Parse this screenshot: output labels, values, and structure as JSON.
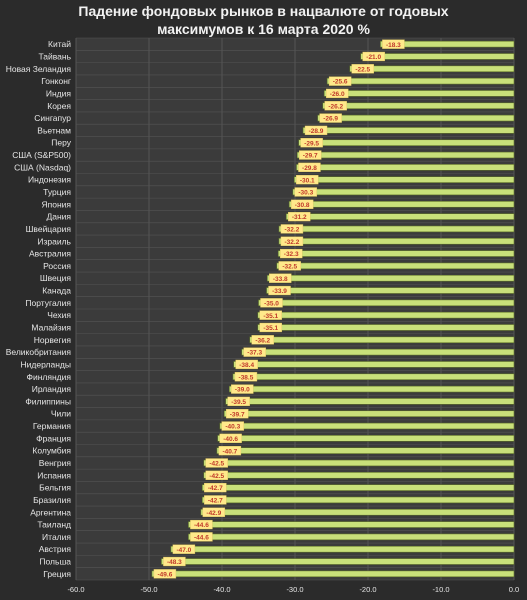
{
  "title_line1": "Падение фондовых рынков в нацвалюте от годовых",
  "title_line2": "максимумов к 16 марта 2020 %",
  "chart_data": {
    "type": "bar",
    "orientation": "horizontal",
    "title": "Падение фондовых рынков в нацвалюте от годовых максимумов к 16 марта 2020 %",
    "categories": [
      "Китай",
      "Тайвань",
      "Новая Зеландия",
      "Гонконг",
      "Индия",
      "Корея",
      "Сингапур",
      "Вьетнам",
      "Перу",
      "США (S&P500)",
      "США (Nasdaq)",
      "Индонезия",
      "Турция",
      "Япония",
      "Дания",
      "Швейцария",
      "Израиль",
      "Австралия",
      "Россия",
      "Швеция",
      "Канада",
      "Португалия",
      "Чехия",
      "Малайзия",
      "Норвегия",
      "Великобритания",
      "Нидерланды",
      "Финляндия",
      "Ирландия",
      "Филиппины",
      "Чили",
      "Германия",
      "Франция",
      "Колумбия",
      "Венгрия",
      "Испания",
      "Бельгия",
      "Бразилия",
      "Аргентина",
      "Таиланд",
      "Италия",
      "Австрия",
      "Польша",
      "Греция"
    ],
    "values": [
      -18.3,
      -21.0,
      -22.5,
      -25.6,
      -26.0,
      -26.2,
      -26.9,
      -28.9,
      -29.5,
      -29.7,
      -29.8,
      -30.1,
      -30.3,
      -30.8,
      -31.2,
      -32.2,
      -32.2,
      -32.3,
      -32.5,
      -33.8,
      -33.9,
      -35.0,
      -35.1,
      -35.1,
      -36.2,
      -37.3,
      -38.4,
      -38.5,
      -39.0,
      -39.5,
      -39.7,
      -40.3,
      -40.6,
      -40.7,
      -42.5,
      -42.5,
      -42.7,
      -42.7,
      -42.9,
      -44.6,
      -44.6,
      -47.0,
      -48.3,
      -49.6
    ],
    "xlim": [
      -60.0,
      0.0
    ],
    "xticks": [
      "-60.0",
      "-50.0",
      "-40.0",
      "-30.0",
      "-20.0",
      "-10.0",
      "0.0"
    ],
    "grid": true,
    "colors": {
      "background": "#2b2b2b",
      "plot_background": "#3b3b3b",
      "bar": "#c9e07a",
      "bar_edge": "#5a6b28",
      "label_bg": "#ffe98a",
      "label_text": "#c0392b",
      "text": "#e6e6e6",
      "grid": "#555555"
    }
  }
}
